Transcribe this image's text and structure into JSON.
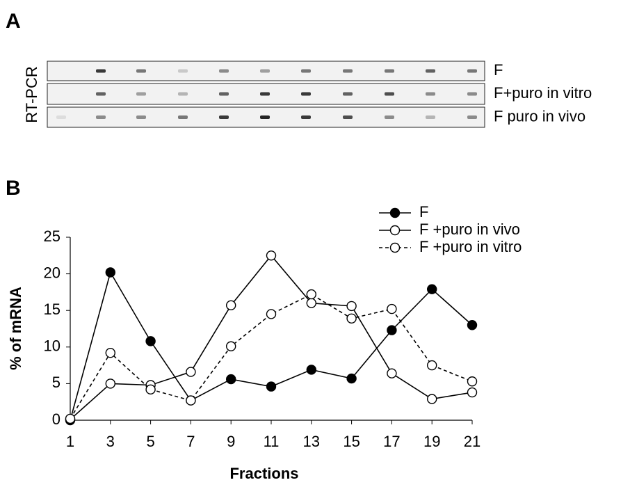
{
  "panels": {
    "a": "A",
    "b": "B"
  },
  "gel": {
    "side_label": "RT-PCR",
    "lane_labels": [
      "F",
      "F+puro in vitro",
      "F puro in vivo"
    ]
  },
  "chart_data": {
    "type": "line",
    "x": [
      1,
      3,
      5,
      7,
      9,
      11,
      13,
      15,
      17,
      19,
      21
    ],
    "series": [
      {
        "name": "F",
        "color": "#000000",
        "marker_fill": "#000000",
        "dashed": false,
        "values": [
          0,
          20.2,
          10.8,
          2.7,
          5.6,
          4.6,
          6.9,
          5.7,
          12.3,
          17.9,
          13.0
        ]
      },
      {
        "name": "F +puro in vivo",
        "color": "#000000",
        "marker_fill": "#ffffff",
        "dashed": false,
        "values": [
          0.1,
          5.0,
          4.8,
          6.6,
          15.7,
          22.5,
          16.0,
          15.6,
          6.4,
          2.9,
          3.8
        ]
      },
      {
        "name": "F +puro in vitro",
        "color": "#000000",
        "marker_fill": "#ffffff",
        "dashed": true,
        "values": [
          0.2,
          9.2,
          4.2,
          2.7,
          10.1,
          14.5,
          17.2,
          13.9,
          15.2,
          7.5,
          5.3
        ]
      }
    ],
    "x_label": "Fractions",
    "y_label": "% of mRNA",
    "xlim": [
      1,
      21
    ],
    "xticks": [
      1,
      3,
      5,
      7,
      9,
      11,
      13,
      15,
      17,
      19,
      21
    ],
    "ylim": [
      0,
      25
    ],
    "yticks": [
      0,
      5,
      10,
      15,
      20,
      25
    ],
    "legend": "upper right"
  }
}
